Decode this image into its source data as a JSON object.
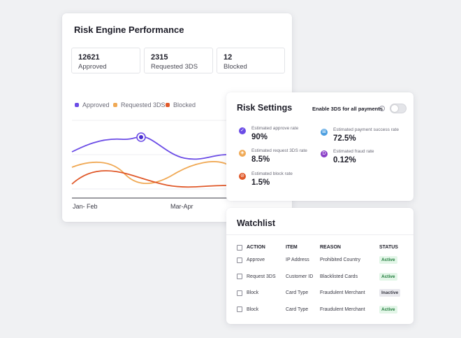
{
  "risk_engine": {
    "title": "Risk Engine Performance",
    "stats": [
      {
        "value": "12621",
        "label": "Approved"
      },
      {
        "value": "2315",
        "label": "Requested 3DS"
      },
      {
        "value": "12",
        "label": "Blocked"
      }
    ],
    "legend": [
      {
        "label": "Approved",
        "color": "#6b4ce6"
      },
      {
        "label": "Requested 3DS",
        "color": "#f0a955"
      },
      {
        "label": "Blocked",
        "color": "#e0592a"
      }
    ],
    "x_labels": [
      "Jan- Feb",
      "Mar-Apr"
    ]
  },
  "risk_settings": {
    "title": "Risk Settings",
    "toggle_label": "Enable 3DS for all payments",
    "toggle_on": false,
    "metrics": [
      {
        "label": "Estimated approve rate",
        "value": "90%",
        "icon": "check-icon",
        "color": "#6b4ce6"
      },
      {
        "label": "Estimated payment success rate",
        "value": "72.5%",
        "icon": "cart-icon",
        "color": "#4a9ee0"
      },
      {
        "label": "Estimated request 3DS rate",
        "value": "8.5%",
        "icon": "shield-icon",
        "color": "#f0a955"
      },
      {
        "label": "Estimated fraud rate",
        "value": "0.12%",
        "icon": "fraud-icon",
        "color": "#8a3fc7"
      },
      {
        "label": "Estimated block rate",
        "value": "1.5%",
        "icon": "block-icon",
        "color": "#e0592a"
      }
    ]
  },
  "watchlist": {
    "title": "Watchlist",
    "headers": [
      "ACTION",
      "ITEM",
      "REASON",
      "STATUS"
    ],
    "rows": [
      {
        "action": "Approve",
        "item": "IP Address",
        "reason": "Prohibited Country",
        "status": "Active"
      },
      {
        "action": "Request 3DS",
        "item": "Customer ID",
        "reason": "Blacklisted Cards",
        "status": "Active"
      },
      {
        "action": "Block",
        "item": "Card Type",
        "reason": "Fraudulent Merchant",
        "status": "Inactive"
      },
      {
        "action": "Block",
        "item": "Card Type",
        "reason": "Fraudulent Merchant",
        "status": "Active"
      }
    ]
  }
}
